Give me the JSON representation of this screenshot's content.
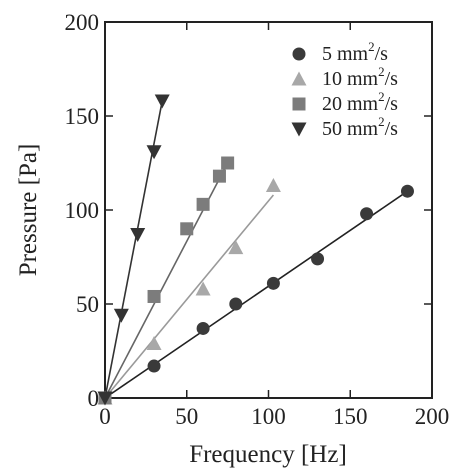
{
  "chart_data": {
    "type": "scatter",
    "xlabel": "Frequency [Hz]",
    "ylabel": "Pressure [Pa]",
    "xlim": [
      0,
      200
    ],
    "ylim": [
      0,
      200
    ],
    "x_ticks": [
      "0",
      "50",
      "100",
      "150",
      "200"
    ],
    "y_ticks": [
      "0",
      "50",
      "100",
      "150",
      "200"
    ],
    "grid": false,
    "legend_position": "top-right",
    "series": [
      {
        "name": "5 mm2/s",
        "name_parts": {
          "base": "5 mm",
          "sup": "2",
          "unit": "/s"
        },
        "marker": "circle",
        "color": "#3a3a3a",
        "line_color": "#222222",
        "x": [
          0,
          30,
          60,
          80,
          103,
          130,
          160,
          185
        ],
        "y": [
          0,
          17,
          37,
          50,
          61,
          74,
          98,
          110
        ],
        "fit": {
          "x": [
            0,
            185
          ],
          "y": [
            0,
            110
          ]
        }
      },
      {
        "name": "10 mm2/s",
        "name_parts": {
          "base": "10 mm",
          "sup": "2",
          "unit": "/s"
        },
        "marker": "triangle-up",
        "color": "#a8a8a8",
        "line_color": "#9a9a9a",
        "x": [
          0,
          30,
          60,
          80,
          103
        ],
        "y": [
          0,
          29,
          58,
          80,
          113
        ],
        "fit": {
          "x": [
            0,
            103
          ],
          "y": [
            0,
            108
          ]
        }
      },
      {
        "name": "20 mm2/s",
        "name_parts": {
          "base": "20 mm",
          "sup": "2",
          "unit": "/s"
        },
        "marker": "square",
        "color": "#7c7c7c",
        "line_color": "#666666",
        "x": [
          0,
          30,
          50,
          60,
          70,
          75
        ],
        "y": [
          0,
          54,
          90,
          103,
          118,
          125
        ],
        "fit": {
          "x": [
            0,
            75
          ],
          "y": [
            0,
            125
          ]
        }
      },
      {
        "name": "50 mm2/s",
        "name_parts": {
          "base": "50 mm",
          "sup": "2",
          "unit": "/s"
        },
        "marker": "triangle-down",
        "color": "#333333",
        "line_color": "#333333",
        "x": [
          0,
          10,
          20,
          30,
          35
        ],
        "y": [
          0,
          44,
          87,
          131,
          158
        ],
        "fit": {
          "x": [
            0,
            35
          ],
          "y": [
            0,
            158
          ]
        }
      }
    ]
  }
}
